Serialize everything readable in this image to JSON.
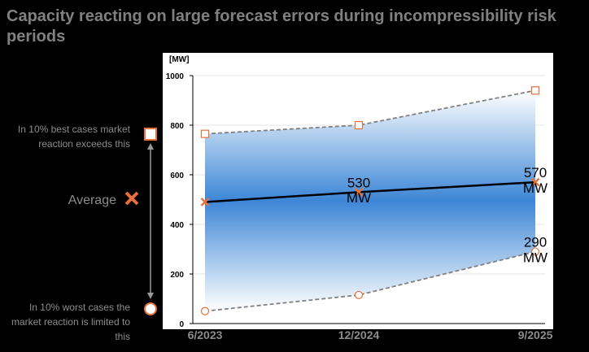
{
  "chart_data": {
    "type": "line",
    "title": "Capacity reacting on large forecast errors during incompressibility risk periods",
    "y_label": "[MW]",
    "categories": [
      "6/2023",
      "12/2024",
      "9/2025"
    ],
    "ylim": [
      0,
      1000
    ],
    "yticks": [
      0,
      200,
      400,
      600,
      800,
      1000
    ],
    "grid": true,
    "band_colors": [
      "#ffffff",
      "#3d86d6"
    ],
    "series": [
      {
        "name": "In 10% best cases market reaction exceeds this",
        "color": "#808080",
        "marker_color": "#e8703a",
        "marker": "square",
        "dashed": true,
        "values": [
          765,
          800,
          940
        ]
      },
      {
        "name": "Average",
        "color": "#000000",
        "marker_color": "#e8703a",
        "marker": "x",
        "dashed": false,
        "values": [
          490,
          530,
          570
        ],
        "value_labels": [
          null,
          "530 MW",
          "570 MW"
        ]
      },
      {
        "name": "In 10% worst cases the market reaction is limited to this",
        "color": "#808080",
        "marker_color": "#e8703a",
        "marker": "circle",
        "dashed": true,
        "values": [
          50,
          115,
          290
        ],
        "value_labels": [
          null,
          null,
          "290 MW"
        ]
      }
    ]
  }
}
